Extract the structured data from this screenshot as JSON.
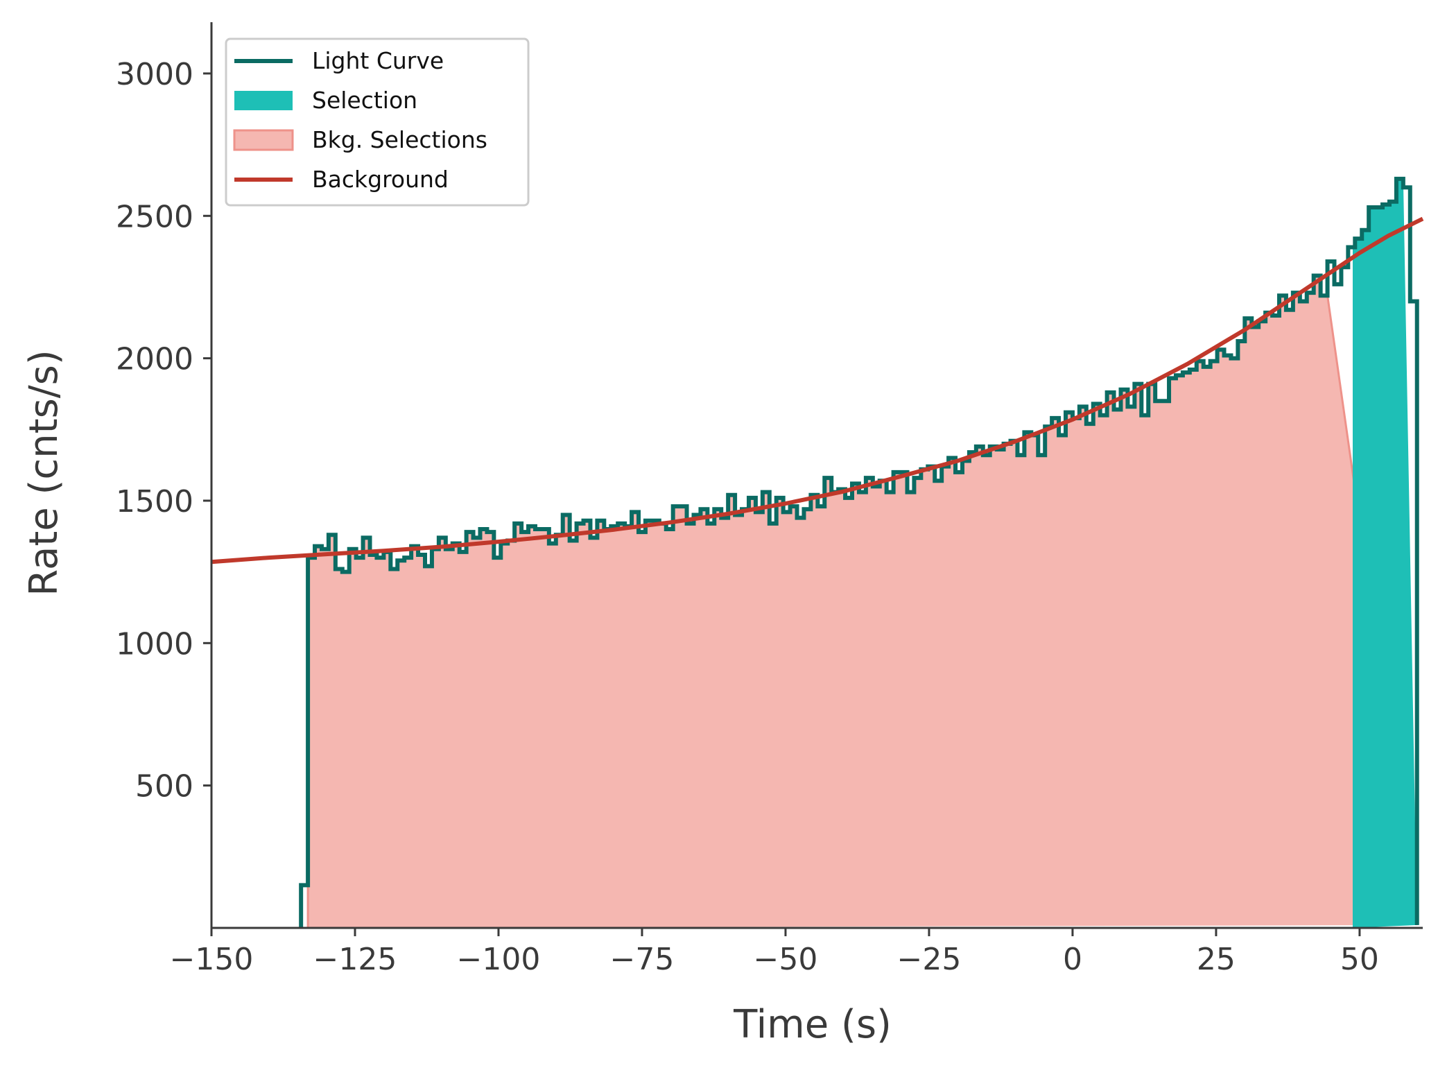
{
  "chart_data": {
    "type": "line",
    "title": "",
    "xlabel": "Time (s)",
    "ylabel": "Rate (cnts/s)",
    "xlim": [
      -150,
      61
    ],
    "ylim": [
      0,
      3180
    ],
    "x_ticks": [
      -150,
      -125,
      -100,
      -75,
      -50,
      -25,
      0,
      25,
      50
    ],
    "x_tick_labels": [
      "−150",
      "−125",
      "−100",
      "−75",
      "−50",
      "−25",
      "0",
      "25",
      "50"
    ],
    "y_ticks": [
      500,
      1000,
      1500,
      2000,
      2500,
      3000
    ],
    "y_tick_labels": [
      "500",
      "1000",
      "1500",
      "2000",
      "2500",
      "3000"
    ],
    "grid": false,
    "legend_position": "top-left",
    "colors": {
      "light_curve": "#0b6b63",
      "selection": "#1ebfb6",
      "bkg_selection": "#f5b7b1",
      "bkg_selection_edge": "#ee928a",
      "background": "#c0392b",
      "axis": "#3a3a3a"
    },
    "legend": [
      {
        "label": "Light Curve",
        "kind": "line",
        "color": "#0b6b63"
      },
      {
        "label": "Selection",
        "kind": "patch",
        "color": "#1ebfb6"
      },
      {
        "label": "Bkg. Selections",
        "kind": "patch",
        "color": "#f5b7b1"
      },
      {
        "label": "Background",
        "kind": "line",
        "color": "#c0392b"
      }
    ],
    "light_curve": {
      "name": "Light Curve",
      "bin_edges": [
        -134.4,
        -133.2,
        -132,
        -130.8,
        -129.6,
        -128.4,
        -127.2,
        -126,
        -124.8,
        -123.6,
        -122.4,
        -121.2,
        -120,
        -118.8,
        -117.6,
        -116.4,
        -115.2,
        -114,
        -112.8,
        -111.6,
        -110.4,
        -109.2,
        -108,
        -106.8,
        -105.6,
        -104.4,
        -103.2,
        -102,
        -100.8,
        -99.6,
        -98.4,
        -97.2,
        -96,
        -94.8,
        -93.6,
        -92.4,
        -91.2,
        -90,
        -88.8,
        -87.6,
        -86.4,
        -85.2,
        -84,
        -82.8,
        -81.6,
        -80.4,
        -79.2,
        -78,
        -76.8,
        -75.6,
        -74.4,
        -73.2,
        -72,
        -70.8,
        -69.6,
        -68.4,
        -67.2,
        -66,
        -64.8,
        -63.6,
        -62.4,
        -61.2,
        -60,
        -58.8,
        -57.6,
        -56.4,
        -55.2,
        -54,
        -52.8,
        -51.6,
        -50.4,
        -49.2,
        -48,
        -46.8,
        -45.6,
        -44.4,
        -43.2,
        -42,
        -40.8,
        -39.6,
        -38.4,
        -37.2,
        -36,
        -34.8,
        -33.6,
        -32.4,
        -31.2,
        -30,
        -28.8,
        -27.6,
        -26.4,
        -25.2,
        -24,
        -22.8,
        -21.6,
        -20.4,
        -19.2,
        -18,
        -16.8,
        -15.6,
        -14.4,
        -13.2,
        -12,
        -10.8,
        -9.6,
        -8.4,
        -7.2,
        -6,
        -4.8,
        -3.6,
        -2.4,
        -1.2,
        0,
        1.2,
        2.4,
        3.6,
        4.8,
        6,
        7.2,
        8.4,
        9.6,
        10.8,
        12,
        13.2,
        14.4,
        15.6,
        16.8,
        18,
        19.2,
        20.4,
        21.6,
        22.8,
        24,
        25.2,
        26.4,
        27.6,
        28.8,
        30,
        31.2,
        32.4,
        33.6,
        34.8,
        36,
        37.2,
        38.4,
        39.6,
        40.8,
        42,
        43.2,
        44.4,
        45.6,
        46.8,
        48,
        49.2,
        50.4,
        51.6,
        52.8,
        54,
        55.2,
        56.4,
        57.6,
        58.8,
        60
      ],
      "rates": [
        150,
        1300,
        1340,
        1330,
        1380,
        1260,
        1250,
        1330,
        1300,
        1370,
        1310,
        1300,
        1320,
        1260,
        1290,
        1300,
        1340,
        1310,
        1270,
        1330,
        1370,
        1330,
        1350,
        1320,
        1390,
        1370,
        1400,
        1390,
        1300,
        1350,
        1360,
        1420,
        1390,
        1410,
        1400,
        1400,
        1350,
        1380,
        1450,
        1360,
        1420,
        1430,
        1370,
        1430,
        1400,
        1410,
        1420,
        1410,
        1460,
        1390,
        1430,
        1430,
        1420,
        1400,
        1480,
        1480,
        1420,
        1450,
        1470,
        1420,
        1470,
        1440,
        1520,
        1450,
        1470,
        1510,
        1460,
        1530,
        1420,
        1510,
        1460,
        1480,
        1440,
        1470,
        1520,
        1480,
        1580,
        1530,
        1540,
        1510,
        1560,
        1530,
        1580,
        1550,
        1570,
        1530,
        1600,
        1600,
        1530,
        1580,
        1610,
        1620,
        1570,
        1620,
        1650,
        1600,
        1640,
        1670,
        1690,
        1660,
        1690,
        1680,
        1700,
        1710,
        1660,
        1740,
        1730,
        1660,
        1760,
        1790,
        1730,
        1810,
        1790,
        1830,
        1770,
        1840,
        1800,
        1880,
        1820,
        1890,
        1830,
        1910,
        1800,
        1910,
        1850,
        1850,
        1930,
        1940,
        1950,
        1960,
        1990,
        1970,
        1990,
        2030,
        2010,
        2000,
        2060,
        2140,
        2110,
        2130,
        2160,
        2150,
        2220,
        2170,
        2230,
        2200,
        2230,
        2290,
        2220,
        2340,
        2260,
        2320,
        2390,
        2420,
        2450,
        2530,
        2530,
        2540,
        2550,
        2630,
        2600,
        2200,
        10
      ]
    },
    "selection": {
      "name": "Selection",
      "x_start": 48.8,
      "x_end": 57.6
    },
    "bkg_selections": [
      {
        "name": "Bkg. Selections",
        "x_start": -133.2,
        "x_end": 44.4
      }
    ],
    "background_model": {
      "name": "Background",
      "x": [
        -150,
        -140,
        -130,
        -120,
        -110,
        -100,
        -90,
        -80,
        -70,
        -60,
        -50,
        -40,
        -30,
        -20,
        -10,
        0,
        10,
        20,
        30,
        40,
        50,
        55,
        61
      ],
      "y": [
        1285,
        1300,
        1312,
        1324,
        1338,
        1356,
        1376,
        1398,
        1424,
        1454,
        1490,
        1532,
        1585,
        1640,
        1708,
        1785,
        1875,
        1980,
        2100,
        2235,
        2370,
        2430,
        2490
      ]
    }
  }
}
